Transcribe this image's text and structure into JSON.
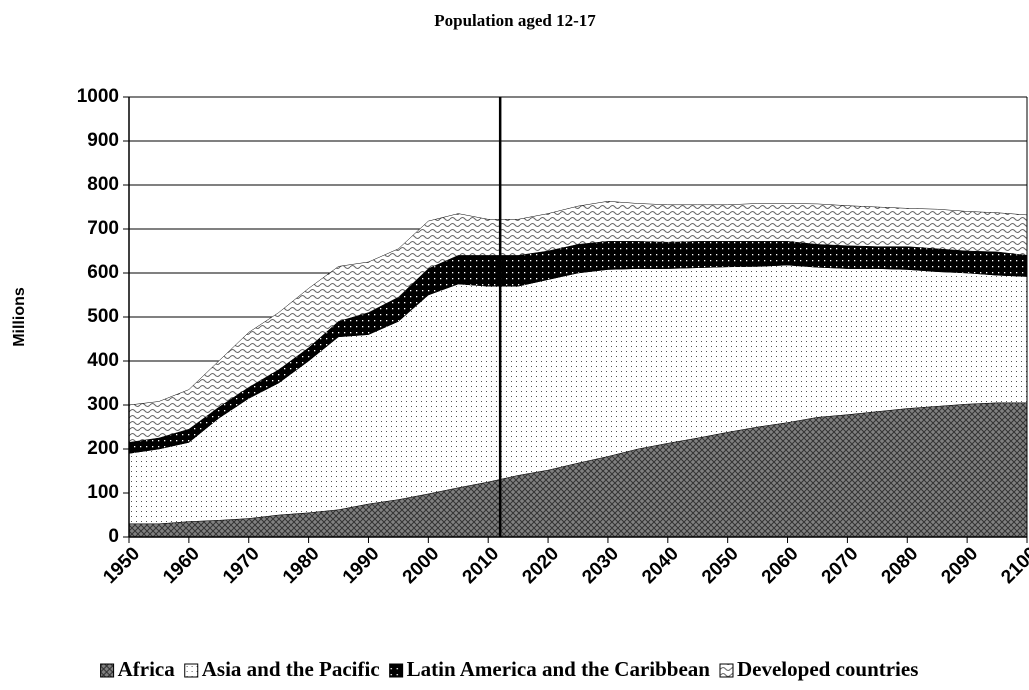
{
  "chart_data": {
    "type": "stacked-area",
    "title": "Population aged 12-17",
    "y_label": "Millions",
    "x": [
      1950,
      1955,
      1960,
      1965,
      1970,
      1975,
      1980,
      1985,
      1990,
      1995,
      2000,
      2005,
      2010,
      2015,
      2020,
      2025,
      2030,
      2035,
      2040,
      2045,
      2050,
      2055,
      2060,
      2065,
      2070,
      2075,
      2080,
      2085,
      2090,
      2095,
      2100
    ],
    "series": [
      {
        "name": "Africa",
        "color": "#808080",
        "values": [
          30,
          30,
          35,
          38,
          42,
          50,
          55,
          62,
          75,
          85,
          98,
          112,
          125,
          140,
          152,
          168,
          183,
          200,
          213,
          225,
          238,
          250,
          260,
          272,
          278,
          285,
          292,
          297,
          302,
          305,
          305
        ]
      },
      {
        "name": "Asia and the Pacific",
        "color": "#ffffff",
        "values": [
          160,
          170,
          180,
          232,
          273,
          300,
          345,
          393,
          385,
          405,
          452,
          463,
          445,
          430,
          433,
          432,
          425,
          410,
          397,
          387,
          376,
          365,
          358,
          341,
          332,
          325,
          316,
          306,
          298,
          290,
          287
        ]
      },
      {
        "name": "Latin America and the Caribbean",
        "color": "#000000",
        "values": [
          25,
          25,
          30,
          25,
          25,
          30,
          30,
          35,
          50,
          55,
          60,
          65,
          70,
          70,
          65,
          65,
          64,
          62,
          60,
          60,
          58,
          57,
          54,
          52,
          52,
          50,
          52,
          52,
          50,
          53,
          48
        ]
      },
      {
        "name": "Developed countries",
        "color": "#c0c0c0",
        "values": [
          85,
          83,
          90,
          105,
          125,
          130,
          135,
          125,
          115,
          110,
          108,
          95,
          82,
          82,
          85,
          87,
          91,
          86,
          85,
          83,
          83,
          86,
          86,
          92,
          91,
          90,
          87,
          90,
          90,
          89,
          92
        ]
      }
    ],
    "xlim": [
      1950,
      2100
    ],
    "xticks": [
      1950,
      1960,
      1970,
      1980,
      1990,
      2000,
      2010,
      2020,
      2030,
      2040,
      2050,
      2060,
      2070,
      2080,
      2090,
      2100
    ],
    "ylim": [
      0,
      1000
    ],
    "yticks": [
      0,
      100,
      200,
      300,
      400,
      500,
      600,
      700,
      800,
      900,
      1000
    ],
    "grid": true,
    "vertical_line": 2012,
    "legend": "bottom"
  }
}
